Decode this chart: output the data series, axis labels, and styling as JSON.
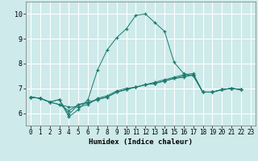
{
  "xlabel": "Humidex (Indice chaleur)",
  "background_color": "#ceeaea",
  "grid_color": "#ffffff",
  "line_color": "#1a7a6e",
  "xlim": [
    -0.5,
    23.5
  ],
  "ylim": [
    5.5,
    10.5
  ],
  "xticks": [
    0,
    1,
    2,
    3,
    4,
    5,
    6,
    7,
    8,
    9,
    10,
    11,
    12,
    13,
    14,
    15,
    16,
    17,
    18,
    19,
    20,
    21,
    22,
    23
  ],
  "yticks": [
    6,
    7,
    8,
    9,
    10
  ],
  "series": [
    [
      6.65,
      6.6,
      6.45,
      6.55,
      5.85,
      6.15,
      6.55,
      7.75,
      8.55,
      9.05,
      9.4,
      9.95,
      10.0,
      9.65,
      9.3,
      8.05,
      7.6,
      7.5,
      6.85,
      6.85,
      6.95,
      7.0,
      6.95
    ],
    [
      6.65,
      6.6,
      6.45,
      6.35,
      6.25,
      6.25,
      6.35,
      6.6,
      6.7,
      6.9,
      7.0,
      7.05,
      7.15,
      7.2,
      7.3,
      7.4,
      7.5,
      7.55,
      6.85,
      6.85,
      6.95,
      7.0,
      6.95
    ],
    [
      6.65,
      6.6,
      6.45,
      6.35,
      6.1,
      6.35,
      6.45,
      6.55,
      6.65,
      6.85,
      6.95,
      7.05,
      7.15,
      7.25,
      7.35,
      7.45,
      7.55,
      7.6,
      6.85,
      6.85,
      6.95,
      7.0,
      6.95
    ],
    [
      6.65,
      6.6,
      6.45,
      6.55,
      5.95,
      6.35,
      6.4,
      6.55,
      6.65,
      6.85,
      6.95,
      7.05,
      7.15,
      7.2,
      7.3,
      7.4,
      7.45,
      7.55,
      6.85,
      6.85,
      6.95,
      7.0,
      6.95
    ]
  ],
  "series_x": [
    [
      0,
      1,
      2,
      3,
      4,
      5,
      6,
      7,
      8,
      9,
      10,
      11,
      12,
      13,
      14,
      15,
      16,
      17,
      18,
      19,
      20,
      21,
      22
    ],
    [
      0,
      1,
      2,
      3,
      4,
      5,
      6,
      7,
      8,
      9,
      10,
      11,
      12,
      13,
      14,
      15,
      16,
      17,
      18,
      19,
      20,
      21,
      22
    ],
    [
      0,
      1,
      2,
      3,
      4,
      5,
      6,
      7,
      8,
      9,
      10,
      11,
      12,
      13,
      14,
      15,
      16,
      17,
      18,
      19,
      20,
      21,
      22
    ],
    [
      0,
      1,
      2,
      3,
      4,
      5,
      6,
      7,
      8,
      9,
      10,
      11,
      12,
      13,
      14,
      15,
      16,
      17,
      18,
      19,
      20,
      21,
      22
    ]
  ]
}
